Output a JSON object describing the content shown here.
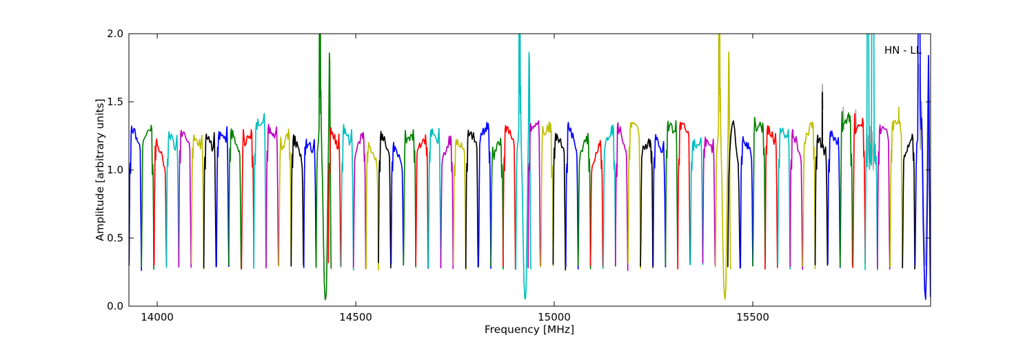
{
  "header": {
    "corner_label": "HN - LL"
  },
  "chart_data": {
    "type": "line",
    "title": "",
    "annotation": "HN - LL",
    "xlabel": "Frequency [MHz]",
    "ylabel": "Amplitude [arbitrary units]",
    "xlim": [
      13928.6,
      15948.0
    ],
    "ylim": [
      0.0,
      2.0
    ],
    "xticks": [
      14000,
      14500,
      15000,
      15500
    ],
    "xtick_labels": [
      "14000",
      "14500",
      "15000",
      "15500"
    ],
    "yticks": [
      0.0,
      0.5,
      1.0,
      1.5,
      2.0
    ],
    "ytick_labels": [
      "0.0",
      "0.5",
      "1.0",
      "1.5",
      "2.0"
    ],
    "grid": false,
    "legend": "none",
    "description": "Autocorrelation bandpass spectrum, station HN polarization LL: contiguous ~31.4 MHz sub-bands, each a flat-topped bandpass hump (plateau ~1.0-1.35, gaps dipping to ~0.27), colors cycling through the classic matplotlib palette. RFI spikes clipped at 2.0 near 14410, 14911 and 15414 MHz with deep notches to ~0.05; noisy cyan band with two clipped spikes near 15790-15802 MHz; blown-up blue band at the right edge near 15918-15942 MHz.",
    "color_cycle": [
      "#0000ff",
      "#008000",
      "#ff0000",
      "#00bfbf",
      "#bf00bf",
      "#bfbf00",
      "#000000"
    ],
    "color_map": {
      "blue": "#0000ff",
      "green": "#008000",
      "red": "#ff0000",
      "cyan": "#00bfbf",
      "magenta": "#bf00bf",
      "yellow": "#bfbf00",
      "black": "#000000"
    },
    "gray_color": "#ababab",
    "band_width_mhz": 31.42,
    "baseline_amp": 0.27,
    "typical_plateau_amp": 1.12,
    "typical_peak_amp": 1.3,
    "bands": [
      {
        "f0": 13929,
        "color": "blue"
      },
      {
        "f0": 13960,
        "color": "green"
      },
      {
        "f0": 13992,
        "color": "red"
      },
      {
        "f0": 14023,
        "color": "cyan"
      },
      {
        "f0": 14054,
        "color": "magenta"
      },
      {
        "f0": 14086,
        "color": "yellow"
      },
      {
        "f0": 14117,
        "color": "black"
      },
      {
        "f0": 14149,
        "color": "blue"
      },
      {
        "f0": 14180,
        "color": "green"
      },
      {
        "f0": 14212,
        "color": "red"
      },
      {
        "f0": 14243,
        "color": "cyan"
      },
      {
        "f0": 14274,
        "color": "magenta"
      },
      {
        "f0": 14306,
        "color": "yellow"
      },
      {
        "f0": 14337,
        "color": "black"
      },
      {
        "f0": 14369,
        "color": "blue"
      },
      {
        "f0": 14400,
        "color": "green",
        "anomaly": "rfi_spikes",
        "note": "clipped spike ~14410 MHz, notch to ~0.05, second spike ~1.86"
      },
      {
        "f0": 14431,
        "color": "red",
        "peak": 1.31
      },
      {
        "f0": 14463,
        "color": "cyan"
      },
      {
        "f0": 14494,
        "color": "magenta"
      },
      {
        "f0": 14526,
        "color": "yellow"
      },
      {
        "f0": 14557,
        "color": "black"
      },
      {
        "f0": 14589,
        "color": "blue"
      },
      {
        "f0": 14620,
        "color": "green"
      },
      {
        "f0": 14651,
        "color": "red"
      },
      {
        "f0": 14683,
        "color": "cyan"
      },
      {
        "f0": 14714,
        "color": "magenta"
      },
      {
        "f0": 14746,
        "color": "yellow"
      },
      {
        "f0": 14777,
        "color": "black"
      },
      {
        "f0": 14809,
        "color": "blue"
      },
      {
        "f0": 14840,
        "color": "green"
      },
      {
        "f0": 14871,
        "color": "red"
      },
      {
        "f0": 14903,
        "color": "cyan",
        "anomaly": "rfi_spikes",
        "note": "clipped spike ~14911 MHz, notch to ~0.04, second spike ~1.9"
      },
      {
        "f0": 14934,
        "color": "magenta",
        "peak": 1.34
      },
      {
        "f0": 14966,
        "color": "yellow"
      },
      {
        "f0": 14997,
        "color": "black"
      },
      {
        "f0": 15029,
        "color": "blue"
      },
      {
        "f0": 15060,
        "color": "green"
      },
      {
        "f0": 15091,
        "color": "red"
      },
      {
        "f0": 15123,
        "color": "cyan",
        "peak": 1.33
      },
      {
        "f0": 15154,
        "color": "magenta"
      },
      {
        "f0": 15186,
        "color": "yellow"
      },
      {
        "f0": 15217,
        "color": "black"
      },
      {
        "f0": 15249,
        "color": "blue"
      },
      {
        "f0": 15280,
        "color": "green"
      },
      {
        "f0": 15311,
        "color": "red"
      },
      {
        "f0": 15343,
        "color": "cyan"
      },
      {
        "f0": 15374,
        "color": "magenta"
      },
      {
        "f0": 15406,
        "color": "yellow",
        "anomaly": "rfi_spikes",
        "note": "clipped spike ~15414 MHz, notch to ~0.05, second spike ~1.87"
      },
      {
        "f0": 15437,
        "color": "black",
        "peak": 1.36,
        "shape_hint": "dome"
      },
      {
        "f0": 15469,
        "color": "blue"
      },
      {
        "f0": 15500,
        "color": "green"
      },
      {
        "f0": 15531,
        "color": "red"
      },
      {
        "f0": 15563,
        "color": "cyan"
      },
      {
        "f0": 15594,
        "color": "magenta"
      },
      {
        "f0": 15626,
        "color": "yellow"
      },
      {
        "f0": 15657,
        "color": "black",
        "anomaly": "thin_spike",
        "spike_rel": 0.58,
        "spike_amp": 1.57,
        "gray_cap": true
      },
      {
        "f0": 15689,
        "color": "blue"
      },
      {
        "f0": 15720,
        "color": "green",
        "peak": 1.4,
        "gray_cap": true
      },
      {
        "f0": 15752,
        "color": "red",
        "peak": 1.38,
        "gray_cap": true
      },
      {
        "f0": 15783,
        "color": "cyan",
        "anomaly": "noisy_spikes",
        "note": "two clipped spikes ~15790 and ~15801 MHz, noisy top around 1.1"
      },
      {
        "f0": 15814,
        "color": "magenta",
        "peak": 1.33
      },
      {
        "f0": 15846,
        "color": "yellow",
        "anomaly": "thin_spike",
        "spike_rel": 0.7,
        "spike_amp": 1.46
      },
      {
        "f0": 15877,
        "color": "black"
      },
      {
        "f0": 15908,
        "color": "blue",
        "anomaly": "edge_blowup",
        "f1": 15948
      }
    ],
    "edge_profile": [
      [
        15909.0,
        0.3
      ],
      [
        15911.5,
        1.0
      ],
      [
        15913.5,
        1.2
      ],
      [
        15915.5,
        1.22
      ],
      [
        15916.5,
        2.1
      ],
      [
        15921.0,
        2.1
      ],
      [
        15922.5,
        1.45
      ],
      [
        15924.0,
        1.3
      ],
      [
        15925.5,
        1.38
      ],
      [
        15927.5,
        1.05
      ],
      [
        15929.5,
        0.6
      ],
      [
        15933.0,
        0.12
      ],
      [
        15935.5,
        0.05
      ],
      [
        15938.0,
        0.3
      ],
      [
        15940.5,
        0.95
      ],
      [
        15941.8,
        1.55
      ],
      [
        15942.6,
        1.84
      ],
      [
        15944.0,
        1.5
      ],
      [
        15945.8,
        0.7
      ],
      [
        15947.0,
        0.25
      ],
      [
        15947.6,
        0.07
      ]
    ],
    "gray_traces": [
      [
        [
          15674.5,
          1.5
        ],
        [
          15675.5,
          1.63
        ],
        [
          15676.5,
          1.45
        ]
      ],
      [
        [
          15726.0,
          1.33
        ],
        [
          15728.0,
          1.46
        ],
        [
          15730.0,
          1.3
        ]
      ],
      [
        [
          15757.5,
          1.35
        ],
        [
          15759.5,
          1.44
        ],
        [
          15761.5,
          1.28
        ]
      ],
      [
        [
          15785.0,
          1.05
        ],
        [
          15787.0,
          1.3
        ],
        [
          15789.0,
          1.02
        ],
        [
          15791.0,
          1.25
        ],
        [
          15793.5,
          1.1
        ],
        [
          15796.0,
          1.32
        ],
        [
          15798.5,
          1.05
        ],
        [
          15801.0,
          1.28
        ],
        [
          15803.5,
          1.0
        ],
        [
          15806.0,
          1.2
        ],
        [
          15808.0,
          1.05
        ]
      ],
      [
        [
          15916.0,
          1.65
        ],
        [
          15918.0,
          1.78
        ],
        [
          15920.0,
          1.45
        ],
        [
          15922.5,
          1.15
        ],
        [
          15925.0,
          1.5
        ],
        [
          15927.0,
          1.3
        ],
        [
          15929.5,
          0.9
        ],
        [
          15932.0,
          0.45
        ],
        [
          15935.0,
          0.3
        ],
        [
          15938.0,
          0.75
        ],
        [
          15940.0,
          1.25
        ],
        [
          15942.0,
          1.65
        ],
        [
          15944.0,
          1.15
        ],
        [
          15945.5,
          0.6
        ],
        [
          15946.5,
          0.3
        ]
      ]
    ],
    "rfi_shape": [
      [
        0.004,
        0.28
      ],
      [
        0.03,
        0.6
      ],
      [
        0.065,
        0.98
      ],
      [
        0.105,
        1.14
      ],
      [
        0.15,
        1.17
      ],
      [
        0.2,
        1.22
      ],
      [
        0.245,
        1.3
      ],
      [
        0.265,
        2.1
      ],
      [
        0.295,
        1.55
      ],
      [
        0.31,
        2.1
      ],
      [
        0.35,
        2.1
      ],
      [
        0.37,
        1.42
      ],
      [
        0.39,
        1.6
      ],
      [
        0.415,
        1.33
      ],
      [
        0.46,
        1.12
      ],
      [
        0.52,
        0.9
      ],
      [
        0.59,
        0.5
      ],
      [
        0.66,
        0.18
      ],
      [
        0.73,
        0.06
      ],
      [
        0.78,
        0.05
      ],
      [
        0.83,
        0.12
      ],
      [
        0.89,
        0.45
      ],
      [
        0.96,
        0.95
      ],
      [
        1.02,
        1.3
      ],
      [
        1.065,
        1.86
      ],
      [
        1.095,
        1.8
      ],
      [
        1.13,
        1.3
      ],
      [
        1.16,
        0.8
      ],
      [
        1.19,
        0.4
      ],
      [
        1.21,
        0.27
      ]
    ],
    "noisy_shape": [
      [
        0.004,
        0.28
      ],
      [
        0.03,
        0.6
      ],
      [
        0.07,
        1.0
      ],
      [
        0.11,
        1.12
      ],
      [
        0.14,
        1.04
      ],
      [
        0.165,
        2.1
      ],
      [
        0.29,
        2.1
      ],
      [
        0.32,
        1.12
      ],
      [
        0.36,
        1.0
      ],
      [
        0.4,
        1.2
      ],
      [
        0.44,
        1.05
      ],
      [
        0.48,
        1.16
      ],
      [
        0.51,
        1.02
      ],
      [
        0.53,
        2.1
      ],
      [
        0.7,
        2.1
      ],
      [
        0.73,
        1.18
      ],
      [
        0.77,
        1.08
      ],
      [
        0.81,
        1.2
      ],
      [
        0.85,
        1.05
      ],
      [
        0.89,
        1.1
      ],
      [
        0.93,
        0.9
      ],
      [
        0.965,
        0.5
      ],
      [
        0.993,
        0.28
      ]
    ],
    "style": {
      "background": "#ffffff",
      "axis_color": "#000000",
      "line_width": 1.7,
      "tick_length": 7
    }
  }
}
